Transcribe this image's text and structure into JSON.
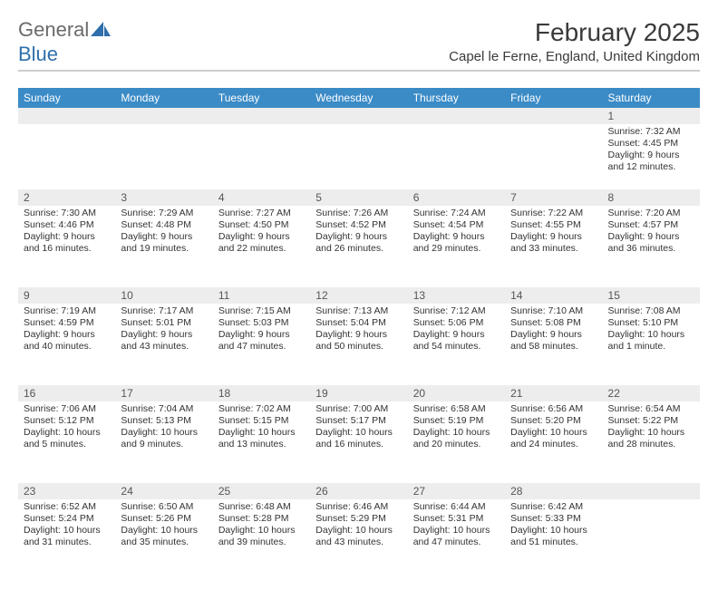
{
  "brand": {
    "part1": "General",
    "part2": "Blue"
  },
  "title": "February 2025",
  "location": "Capel le Ferne, England, United Kingdom",
  "colors": {
    "header_bg": "#3b8bc7",
    "header_text": "#ffffff",
    "row_alt_bg": "#ededed",
    "border": "#bfbfbf",
    "page_bg": "#ffffff",
    "text": "#333333",
    "logo_gray": "#6a6a6a",
    "logo_blue": "#2f6fab"
  },
  "day_names": [
    "Sunday",
    "Monday",
    "Tuesday",
    "Wednesday",
    "Thursday",
    "Friday",
    "Saturday"
  ],
  "weeks": [
    [
      {
        "n": "",
        "sunrise": "",
        "sunset": "",
        "daylight": ""
      },
      {
        "n": "",
        "sunrise": "",
        "sunset": "",
        "daylight": ""
      },
      {
        "n": "",
        "sunrise": "",
        "sunset": "",
        "daylight": ""
      },
      {
        "n": "",
        "sunrise": "",
        "sunset": "",
        "daylight": ""
      },
      {
        "n": "",
        "sunrise": "",
        "sunset": "",
        "daylight": ""
      },
      {
        "n": "",
        "sunrise": "",
        "sunset": "",
        "daylight": ""
      },
      {
        "n": "1",
        "sunrise": "Sunrise: 7:32 AM",
        "sunset": "Sunset: 4:45 PM",
        "daylight": "Daylight: 9 hours and 12 minutes."
      }
    ],
    [
      {
        "n": "2",
        "sunrise": "Sunrise: 7:30 AM",
        "sunset": "Sunset: 4:46 PM",
        "daylight": "Daylight: 9 hours and 16 minutes."
      },
      {
        "n": "3",
        "sunrise": "Sunrise: 7:29 AM",
        "sunset": "Sunset: 4:48 PM",
        "daylight": "Daylight: 9 hours and 19 minutes."
      },
      {
        "n": "4",
        "sunrise": "Sunrise: 7:27 AM",
        "sunset": "Sunset: 4:50 PM",
        "daylight": "Daylight: 9 hours and 22 minutes."
      },
      {
        "n": "5",
        "sunrise": "Sunrise: 7:26 AM",
        "sunset": "Sunset: 4:52 PM",
        "daylight": "Daylight: 9 hours and 26 minutes."
      },
      {
        "n": "6",
        "sunrise": "Sunrise: 7:24 AM",
        "sunset": "Sunset: 4:54 PM",
        "daylight": "Daylight: 9 hours and 29 minutes."
      },
      {
        "n": "7",
        "sunrise": "Sunrise: 7:22 AM",
        "sunset": "Sunset: 4:55 PM",
        "daylight": "Daylight: 9 hours and 33 minutes."
      },
      {
        "n": "8",
        "sunrise": "Sunrise: 7:20 AM",
        "sunset": "Sunset: 4:57 PM",
        "daylight": "Daylight: 9 hours and 36 minutes."
      }
    ],
    [
      {
        "n": "9",
        "sunrise": "Sunrise: 7:19 AM",
        "sunset": "Sunset: 4:59 PM",
        "daylight": "Daylight: 9 hours and 40 minutes."
      },
      {
        "n": "10",
        "sunrise": "Sunrise: 7:17 AM",
        "sunset": "Sunset: 5:01 PM",
        "daylight": "Daylight: 9 hours and 43 minutes."
      },
      {
        "n": "11",
        "sunrise": "Sunrise: 7:15 AM",
        "sunset": "Sunset: 5:03 PM",
        "daylight": "Daylight: 9 hours and 47 minutes."
      },
      {
        "n": "12",
        "sunrise": "Sunrise: 7:13 AM",
        "sunset": "Sunset: 5:04 PM",
        "daylight": "Daylight: 9 hours and 50 minutes."
      },
      {
        "n": "13",
        "sunrise": "Sunrise: 7:12 AM",
        "sunset": "Sunset: 5:06 PM",
        "daylight": "Daylight: 9 hours and 54 minutes."
      },
      {
        "n": "14",
        "sunrise": "Sunrise: 7:10 AM",
        "sunset": "Sunset: 5:08 PM",
        "daylight": "Daylight: 9 hours and 58 minutes."
      },
      {
        "n": "15",
        "sunrise": "Sunrise: 7:08 AM",
        "sunset": "Sunset: 5:10 PM",
        "daylight": "Daylight: 10 hours and 1 minute."
      }
    ],
    [
      {
        "n": "16",
        "sunrise": "Sunrise: 7:06 AM",
        "sunset": "Sunset: 5:12 PM",
        "daylight": "Daylight: 10 hours and 5 minutes."
      },
      {
        "n": "17",
        "sunrise": "Sunrise: 7:04 AM",
        "sunset": "Sunset: 5:13 PM",
        "daylight": "Daylight: 10 hours and 9 minutes."
      },
      {
        "n": "18",
        "sunrise": "Sunrise: 7:02 AM",
        "sunset": "Sunset: 5:15 PM",
        "daylight": "Daylight: 10 hours and 13 minutes."
      },
      {
        "n": "19",
        "sunrise": "Sunrise: 7:00 AM",
        "sunset": "Sunset: 5:17 PM",
        "daylight": "Daylight: 10 hours and 16 minutes."
      },
      {
        "n": "20",
        "sunrise": "Sunrise: 6:58 AM",
        "sunset": "Sunset: 5:19 PM",
        "daylight": "Daylight: 10 hours and 20 minutes."
      },
      {
        "n": "21",
        "sunrise": "Sunrise: 6:56 AM",
        "sunset": "Sunset: 5:20 PM",
        "daylight": "Daylight: 10 hours and 24 minutes."
      },
      {
        "n": "22",
        "sunrise": "Sunrise: 6:54 AM",
        "sunset": "Sunset: 5:22 PM",
        "daylight": "Daylight: 10 hours and 28 minutes."
      }
    ],
    [
      {
        "n": "23",
        "sunrise": "Sunrise: 6:52 AM",
        "sunset": "Sunset: 5:24 PM",
        "daylight": "Daylight: 10 hours and 31 minutes."
      },
      {
        "n": "24",
        "sunrise": "Sunrise: 6:50 AM",
        "sunset": "Sunset: 5:26 PM",
        "daylight": "Daylight: 10 hours and 35 minutes."
      },
      {
        "n": "25",
        "sunrise": "Sunrise: 6:48 AM",
        "sunset": "Sunset: 5:28 PM",
        "daylight": "Daylight: 10 hours and 39 minutes."
      },
      {
        "n": "26",
        "sunrise": "Sunrise: 6:46 AM",
        "sunset": "Sunset: 5:29 PM",
        "daylight": "Daylight: 10 hours and 43 minutes."
      },
      {
        "n": "27",
        "sunrise": "Sunrise: 6:44 AM",
        "sunset": "Sunset: 5:31 PM",
        "daylight": "Daylight: 10 hours and 47 minutes."
      },
      {
        "n": "28",
        "sunrise": "Sunrise: 6:42 AM",
        "sunset": "Sunset: 5:33 PM",
        "daylight": "Daylight: 10 hours and 51 minutes."
      },
      {
        "n": "",
        "sunrise": "",
        "sunset": "",
        "daylight": ""
      }
    ]
  ]
}
